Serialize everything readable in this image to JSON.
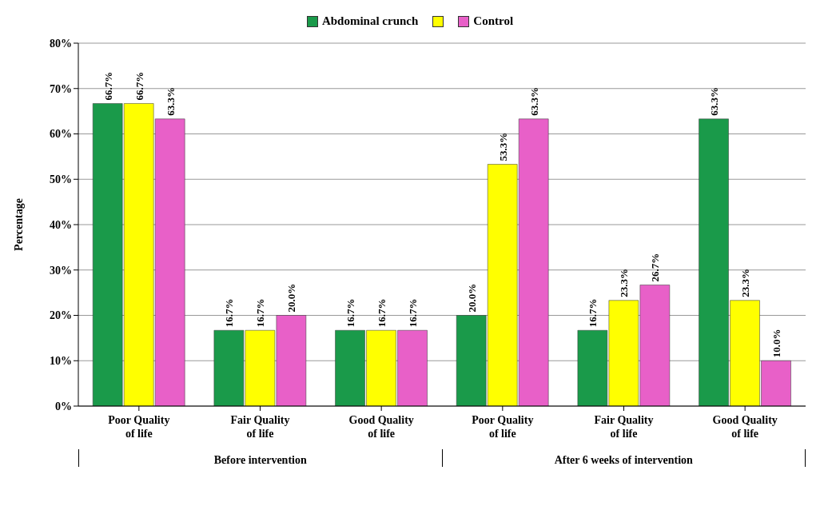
{
  "chart_data": {
    "type": "bar",
    "ylabel": "Percentage",
    "categories": [
      "Poor Quality of life",
      "Fair Quality of life",
      "Good Quality of life",
      "Poor Quality of life",
      "Fair Quality of life",
      "Good Quality of life"
    ],
    "annotations": [
      "Before intervention",
      "After 6 weeks of intervention"
    ],
    "series": [
      {
        "name": "Abdominal crunch",
        "color": "#1a9a4a",
        "values": [
          66.7,
          16.7,
          16.7,
          20.0,
          16.7,
          63.3
        ],
        "value_labels": [
          "66.7%",
          "16.7%",
          "16.7%",
          "20.0%",
          "16.7%",
          "63.3%"
        ]
      },
      {
        "color": "#ffff00",
        "values": [
          66.7,
          16.7,
          16.7,
          53.3,
          23.3,
          23.3
        ],
        "value_labels": [
          "66.7%",
          "16.7%",
          "16.7%",
          "53.3%",
          "23.3%",
          "23.3%"
        ]
      },
      {
        "name": "Control",
        "color": "#e860c8",
        "values": [
          63.3,
          20.0,
          16.7,
          63.3,
          26.7,
          10.0
        ],
        "value_labels": [
          "63.3%",
          "20.0%",
          "16.7%",
          "63.3%",
          "26.7%",
          "10.0%"
        ]
      }
    ],
    "ylim": [
      0,
      80
    ],
    "yticks": [
      {
        "value": 0,
        "label": "0%"
      },
      {
        "value": 10,
        "label": "10%"
      },
      {
        "value": 20,
        "label": "20%"
      },
      {
        "value": 30,
        "label": "30%"
      },
      {
        "value": 40,
        "label": "40%"
      },
      {
        "value": 50,
        "label": "50%"
      },
      {
        "value": 60,
        "label": "60%"
      },
      {
        "value": 70,
        "label": "70%"
      },
      {
        "value": 80,
        "label": "80%"
      }
    ],
    "grid": "y",
    "legend": "top"
  }
}
